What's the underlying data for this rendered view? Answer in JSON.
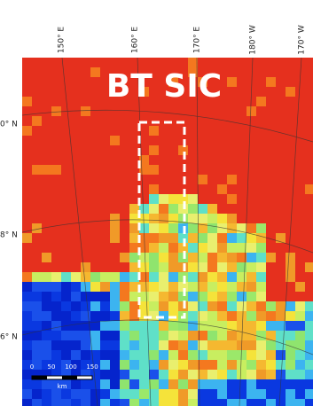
{
  "map": {
    "title": "BT SIC",
    "longitude_labels": [
      "150° E",
      "160° E",
      "170° E",
      "180° W",
      "170° W"
    ],
    "latitude_labels": [
      "0° N",
      "8° N",
      "6° N"
    ],
    "scale_bar": {
      "ticks": [
        "0",
        "50",
        "100",
        "150"
      ],
      "unit": "km"
    }
  }
}
